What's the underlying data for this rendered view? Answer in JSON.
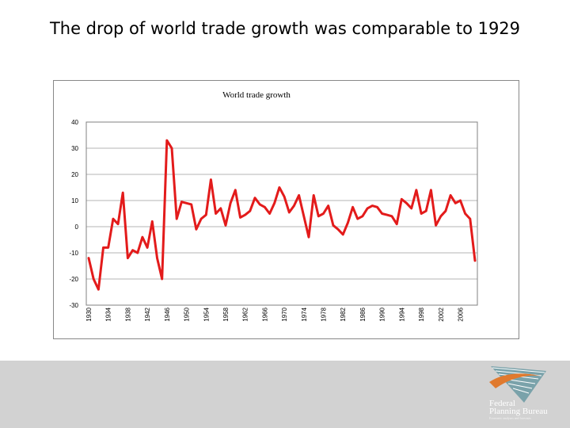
{
  "slide": {
    "title": "The drop of world trade growth was comparable to 1929"
  },
  "logo": {
    "line1": "Federal",
    "line2": "Planning Bureau",
    "tagline": "Economic analyses and forecasts"
  },
  "chart_data": {
    "type": "line",
    "title": "World trade growth",
    "xlabel": "",
    "ylabel": "",
    "ylim": [
      -30,
      40
    ],
    "yticks": [
      -30,
      -20,
      -10,
      0,
      10,
      20,
      30,
      40
    ],
    "xlim": [
      1930,
      2009
    ],
    "xticks": [
      1930,
      1934,
      1938,
      1942,
      1946,
      1950,
      1954,
      1958,
      1962,
      1966,
      1970,
      1974,
      1978,
      1982,
      1986,
      1990,
      1994,
      1998,
      2002,
      2006
    ],
    "grid": "horizontal",
    "color": "#e31b1b",
    "series": [
      {
        "name": "World trade growth",
        "x": [
          1930,
          1931,
          1932,
          1933,
          1934,
          1935,
          1936,
          1937,
          1938,
          1939,
          1940,
          1941,
          1942,
          1943,
          1944,
          1945,
          1946,
          1947,
          1948,
          1949,
          1950,
          1951,
          1952,
          1953,
          1954,
          1955,
          1956,
          1957,
          1958,
          1959,
          1960,
          1961,
          1962,
          1963,
          1964,
          1965,
          1966,
          1967,
          1968,
          1969,
          1970,
          1971,
          1972,
          1973,
          1974,
          1975,
          1976,
          1977,
          1978,
          1979,
          1980,
          1981,
          1982,
          1983,
          1984,
          1985,
          1986,
          1987,
          1988,
          1989,
          1990,
          1991,
          1992,
          1993,
          1994,
          1995,
          1996,
          1997,
          1998,
          1999,
          2000,
          2001,
          2002,
          2003,
          2004,
          2005,
          2006,
          2007,
          2008,
          2009
        ],
        "values": [
          -12,
          -20,
          -24,
          -8,
          -8,
          3,
          1,
          13,
          -12,
          -9,
          -10,
          -4,
          -8,
          2,
          -12,
          -20,
          33,
          30,
          3,
          9.5,
          9,
          8.5,
          -1,
          3,
          4.5,
          18,
          5,
          7,
          0.5,
          9,
          14,
          3.5,
          4.5,
          6,
          11,
          8.5,
          7.5,
          5,
          9,
          15,
          11.5,
          5.5,
          8,
          12,
          4,
          -4,
          12,
          4,
          5,
          8,
          0.5,
          -1,
          -3,
          1.5,
          7.5,
          3,
          4,
          7,
          8,
          7.5,
          5,
          4.5,
          4,
          1,
          10.5,
          9,
          7,
          14,
          5,
          6,
          14,
          0.5,
          4,
          6,
          12,
          9,
          10,
          5,
          3,
          -13
        ]
      }
    ]
  }
}
